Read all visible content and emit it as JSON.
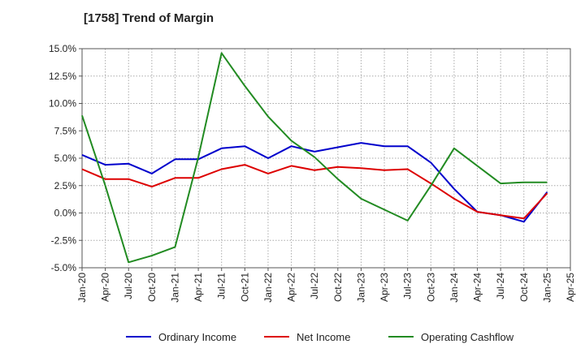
{
  "chart_data": {
    "type": "line",
    "title": "[1758]  Trend of Margin",
    "xlabel": "",
    "ylabel": "",
    "x_ticks": [
      "Jan-20",
      "Apr-20",
      "Jul-20",
      "Oct-20",
      "Jan-21",
      "Apr-21",
      "Jul-21",
      "Oct-21",
      "Jan-22",
      "Apr-22",
      "Jul-22",
      "Oct-22",
      "Jan-23",
      "Apr-23",
      "Jul-23",
      "Oct-23",
      "Jan-24",
      "Apr-24",
      "Jul-24",
      "Oct-24",
      "Jan-25",
      "Apr-25"
    ],
    "y_ticks": [
      "15.0%",
      "12.5%",
      "10.0%",
      "7.5%",
      "5.0%",
      "2.5%",
      "0.0%",
      "-2.5%",
      "-5.0%"
    ],
    "y_tick_values": [
      15,
      12.5,
      10,
      7.5,
      5,
      2.5,
      0,
      -2.5,
      -5
    ],
    "ylim": [
      -5,
      15
    ],
    "grid": true,
    "legend_position": "bottom",
    "categories": [
      "Jan-20",
      "Apr-20",
      "Jul-20",
      "Oct-20",
      "Jan-21",
      "Apr-21",
      "Jul-21",
      "Oct-21",
      "Jan-22",
      "Apr-22",
      "Jul-22",
      "Oct-22",
      "Jan-23",
      "Apr-23",
      "Jul-23",
      "Oct-23",
      "Jan-24",
      "Apr-24",
      "Jul-24",
      "Oct-24",
      "Jan-25"
    ],
    "series": [
      {
        "name": "Ordinary Income",
        "color": "#0000cc",
        "values": [
          5.3,
          4.4,
          4.5,
          3.6,
          4.9,
          4.9,
          5.9,
          6.1,
          5.0,
          6.1,
          5.6,
          6.0,
          6.4,
          6.1,
          6.1,
          4.6,
          2.2,
          0.1,
          -0.2,
          -0.8,
          1.9
        ]
      },
      {
        "name": "Net Income",
        "color": "#dd0000",
        "values": [
          4.0,
          3.1,
          3.1,
          2.4,
          3.2,
          3.2,
          4.0,
          4.4,
          3.6,
          4.3,
          3.9,
          4.2,
          4.1,
          3.9,
          4.0,
          2.7,
          1.3,
          0.1,
          -0.2,
          -0.5,
          1.8
        ]
      },
      {
        "name": "Operating Cashflow",
        "color": "#228b22",
        "values": [
          8.9,
          2.5,
          -4.5,
          -3.9,
          -3.1,
          5.1,
          14.6,
          11.6,
          8.8,
          6.6,
          5.1,
          3.1,
          1.3,
          0.3,
          -0.7,
          2.5,
          5.9,
          4.3,
          2.7,
          2.8,
          2.8
        ]
      }
    ]
  }
}
